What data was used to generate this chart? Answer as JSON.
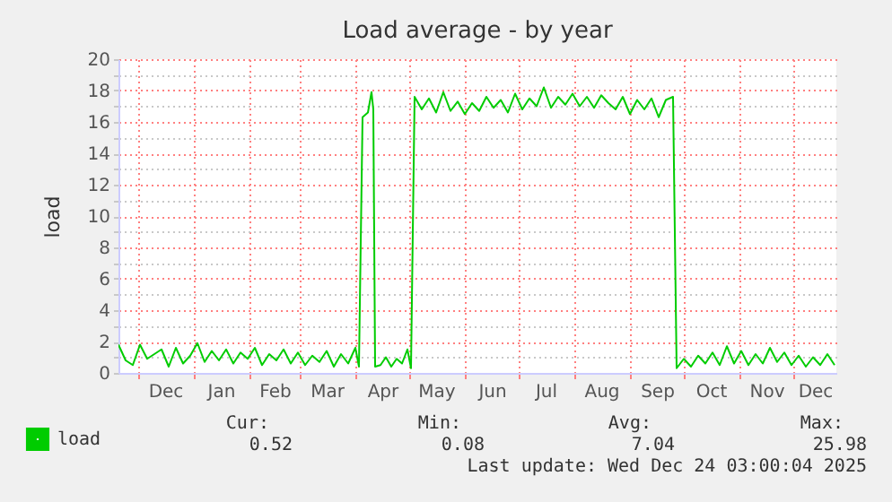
{
  "chart_data": {
    "type": "line",
    "title": "Load average - by year",
    "ylabel": "load",
    "x": [
      "2024-11-20",
      "2024-11-24",
      "2024-11-28",
      "2024-12-02",
      "2024-12-06",
      "2024-12-10",
      "2024-12-14",
      "2024-12-18",
      "2024-12-22",
      "2024-12-26",
      "2024-12-30",
      "2025-01-03",
      "2025-01-07",
      "2025-01-11",
      "2025-01-15",
      "2025-01-19",
      "2025-01-23",
      "2025-01-27",
      "2025-01-31",
      "2025-02-04",
      "2025-02-08",
      "2025-02-12",
      "2025-02-16",
      "2025-02-20",
      "2025-02-24",
      "2025-02-28",
      "2025-03-04",
      "2025-03-08",
      "2025-03-12",
      "2025-03-16",
      "2025-03-20",
      "2025-03-24",
      "2025-03-28",
      "2025-04-01",
      "2025-04-03",
      "2025-04-05",
      "2025-04-08",
      "2025-04-10",
      "2025-04-11",
      "2025-04-12",
      "2025-04-15",
      "2025-04-18",
      "2025-04-21",
      "2025-04-24",
      "2025-04-27",
      "2025-04-30",
      "2025-05-02",
      "2025-05-04",
      "2025-05-08",
      "2025-05-12",
      "2025-05-16",
      "2025-05-20",
      "2025-05-24",
      "2025-05-28",
      "2025-06-01",
      "2025-06-05",
      "2025-06-09",
      "2025-06-13",
      "2025-06-17",
      "2025-06-21",
      "2025-06-25",
      "2025-06-29",
      "2025-07-03",
      "2025-07-07",
      "2025-07-11",
      "2025-07-15",
      "2025-07-19",
      "2025-07-23",
      "2025-07-27",
      "2025-07-31",
      "2025-08-04",
      "2025-08-08",
      "2025-08-12",
      "2025-08-16",
      "2025-08-20",
      "2025-08-24",
      "2025-08-28",
      "2025-09-01",
      "2025-09-05",
      "2025-09-09",
      "2025-09-13",
      "2025-09-17",
      "2025-09-21",
      "2025-09-25",
      "2025-09-27",
      "2025-10-01",
      "2025-10-05",
      "2025-10-09",
      "2025-10-13",
      "2025-10-17",
      "2025-10-21",
      "2025-10-25",
      "2025-10-29",
      "2025-11-02",
      "2025-11-06",
      "2025-11-10",
      "2025-11-14",
      "2025-11-18",
      "2025-11-22",
      "2025-11-26",
      "2025-11-30",
      "2025-12-04",
      "2025-12-08",
      "2025-12-12",
      "2025-12-16",
      "2025-12-20",
      "2025-12-24"
    ],
    "series": [
      {
        "name": "load",
        "color": "#00cc00",
        "values": [
          1.8,
          0.8,
          0.5,
          1.8,
          0.9,
          1.2,
          1.5,
          0.4,
          1.6,
          0.6,
          1.1,
          1.9,
          0.7,
          1.4,
          0.8,
          1.5,
          0.6,
          1.3,
          0.9,
          1.6,
          0.5,
          1.2,
          0.8,
          1.5,
          0.6,
          1.3,
          0.5,
          1.1,
          0.7,
          1.4,
          0.4,
          1.2,
          0.6,
          1.6,
          0.4,
          16.3,
          16.6,
          17.9,
          16.8,
          0.4,
          0.5,
          1.0,
          0.4,
          0.9,
          0.6,
          1.5,
          0.3,
          17.6,
          16.8,
          17.5,
          16.6,
          17.9,
          16.7,
          17.3,
          16.5,
          17.2,
          16.7,
          17.6,
          16.9,
          17.4,
          16.6,
          17.8,
          16.8,
          17.5,
          17.0,
          18.2,
          16.9,
          17.6,
          17.1,
          17.8,
          17.0,
          17.6,
          16.9,
          17.7,
          17.2,
          16.8,
          17.6,
          16.5,
          17.4,
          16.8,
          17.5,
          16.3,
          17.4,
          17.6,
          0.3,
          0.9,
          0.4,
          1.1,
          0.6,
          1.3,
          0.5,
          1.7,
          0.6,
          1.4,
          0.5,
          1.2,
          0.6,
          1.6,
          0.7,
          1.3,
          0.5,
          1.1,
          0.4,
          1.0,
          0.5,
          1.2,
          0.5
        ]
      }
    ],
    "xlim": [
      "2024-11-20",
      "2025-12-25"
    ],
    "xticks": [
      {
        "value": "2024-12-01",
        "label": null
      },
      {
        "value": "2024-12-16",
        "label": "Dec"
      },
      {
        "value": "2025-01-01",
        "label": null
      },
      {
        "value": "2025-01-16",
        "label": "Jan"
      },
      {
        "value": "2025-02-01",
        "label": null
      },
      {
        "value": "2025-02-15",
        "label": "Feb"
      },
      {
        "value": "2025-03-01",
        "label": null
      },
      {
        "value": "2025-03-16",
        "label": "Mar"
      },
      {
        "value": "2025-04-01",
        "label": null
      },
      {
        "value": "2025-04-16",
        "label": "Apr"
      },
      {
        "value": "2025-05-01",
        "label": null
      },
      {
        "value": "2025-05-16",
        "label": "May"
      },
      {
        "value": "2025-06-01",
        "label": null
      },
      {
        "value": "2025-06-16",
        "label": "Jun"
      },
      {
        "value": "2025-07-01",
        "label": null
      },
      {
        "value": "2025-07-16",
        "label": "Jul"
      },
      {
        "value": "2025-08-01",
        "label": null
      },
      {
        "value": "2025-08-16",
        "label": "Aug"
      },
      {
        "value": "2025-09-01",
        "label": null
      },
      {
        "value": "2025-09-16",
        "label": "Sep"
      },
      {
        "value": "2025-10-01",
        "label": null
      },
      {
        "value": "2025-10-16",
        "label": "Oct"
      },
      {
        "value": "2025-11-01",
        "label": null
      },
      {
        "value": "2025-11-16",
        "label": "Nov"
      },
      {
        "value": "2025-12-01",
        "label": null
      },
      {
        "value": "2025-12-13",
        "label": "Dec"
      }
    ],
    "ylim": [
      0,
      20
    ],
    "yticks": [
      0,
      {
        "value": 1,
        "label": null
      },
      2,
      {
        "value": 3,
        "label": null
      },
      4,
      {
        "value": 5,
        "label": null
      },
      6,
      {
        "value": 7,
        "label": null
      },
      8,
      {
        "value": 9,
        "label": null
      },
      10,
      {
        "value": 11,
        "label": null
      },
      12,
      {
        "value": 13,
        "label": null
      },
      14,
      {
        "value": 15,
        "label": null
      },
      16,
      {
        "value": 17,
        "label": null
      },
      18,
      {
        "value": 19,
        "label": null
      },
      20
    ],
    "grid": true,
    "legend": "bottom left",
    "annotations": [
      "Cur:",
      "Min:",
      "Avg:",
      "Max:",
      "0.52",
      "0.08",
      "7.04",
      "25.98",
      "Last update: Wed Dec 24 03:00:04 2025"
    ]
  }
}
